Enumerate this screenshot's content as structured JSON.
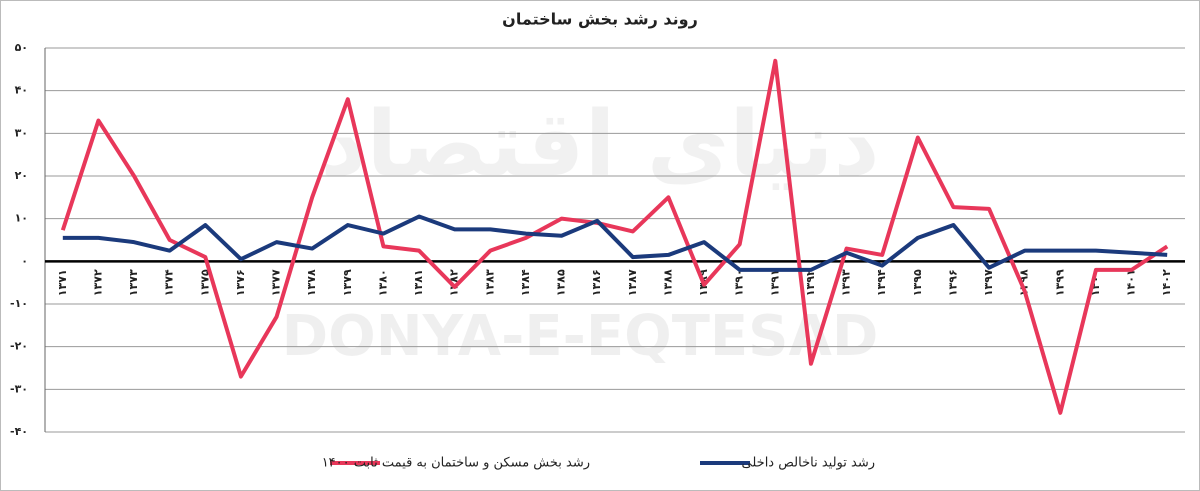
{
  "chart_data": {
    "type": "line",
    "title": "روند رشد بخش ساختمان",
    "watermark": [
      "دنیای اقتصاد",
      "DONYA-E-EQTESAD"
    ],
    "categories": [
      "۱۳۷۱",
      "۱۳۷۲",
      "۱۳۷۳",
      "۱۳۷۴",
      "۱۳۷۵",
      "۱۳۷۶",
      "۱۳۷۷",
      "۱۳۷۸",
      "۱۳۷۹",
      "۱۳۸۰",
      "۱۳۸۱",
      "۱۳۸۲",
      "۱۳۸۳",
      "۱۳۸۴",
      "۱۳۸۵",
      "۱۳۸۶",
      "۱۳۸۷",
      "۱۳۸۸",
      "۱۳۸۹",
      "۱۳۹۰",
      "۱۳۹۱",
      "۱۳۹۲",
      "۱۳۹۳",
      "۱۳۹۴",
      "۱۳۹۵",
      "۱۳۹۶",
      "۱۳۹۷",
      "۱۳۹۸",
      "۱۳۹۹",
      "۱۴۰۰",
      "۱۴۰۱",
      "۱۴۰۲"
    ],
    "series": [
      {
        "name": "رشد بخش مسکن و ساختمان به قیمت ثابت ۱۴۰۰",
        "color": "#e8375a",
        "values": [
          7.3,
          33,
          20,
          5,
          1,
          -27,
          -13,
          15,
          38,
          3.5,
          2.5,
          -6,
          2.5,
          5.5,
          10,
          9,
          7,
          15,
          -5.5,
          4,
          47,
          -24,
          3,
          1.5,
          29,
          12.7,
          12.3,
          -7,
          -35.5,
          -2,
          -2,
          3.5
        ]
      },
      {
        "name": "رشد تولید ناخالص داخلی",
        "color": "#1b3a7c",
        "values": [
          5.5,
          5.5,
          4.5,
          2.5,
          8.5,
          0.5,
          4.5,
          3,
          8.5,
          6.5,
          10.5,
          7.5,
          7.5,
          6.5,
          6,
          9.5,
          1,
          1.5,
          4.5,
          -2,
          -2,
          -2,
          2,
          -1,
          5.5,
          8.5,
          -1.5,
          2.5,
          2.5,
          2.5,
          2,
          1.5
        ]
      }
    ],
    "ylim": [
      -40,
      50
    ],
    "yticks": [
      {
        "value": -40,
        "label": "-۴۰"
      },
      {
        "value": -30,
        "label": "-۳۰"
      },
      {
        "value": -20,
        "label": "-۲۰"
      },
      {
        "value": -10,
        "label": "-۱۰"
      },
      {
        "value": 0,
        "label": "۰"
      },
      {
        "value": 10,
        "label": "۱۰"
      },
      {
        "value": 20,
        "label": "۲۰"
      },
      {
        "value": 30,
        "label": "۳۰"
      },
      {
        "value": 40,
        "label": "۴۰"
      },
      {
        "value": 50,
        "label": "۵۰"
      }
    ],
    "grid": true
  }
}
